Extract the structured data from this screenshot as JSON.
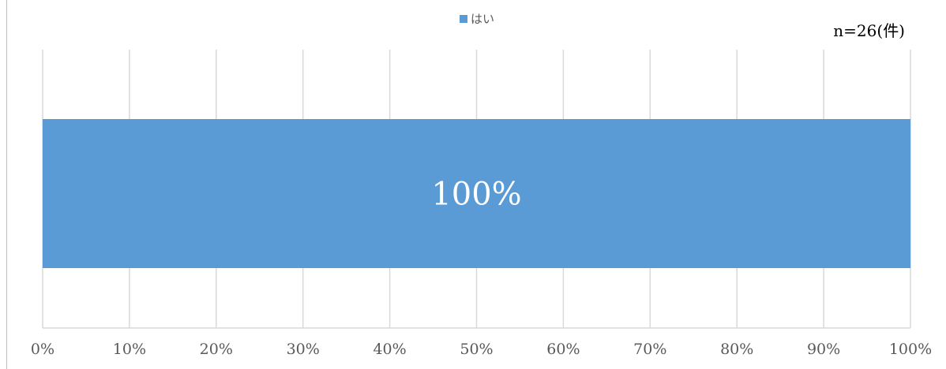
{
  "sample_note": "n=26(件)",
  "colors": {
    "bar": "#5b9bd5",
    "grid": "#d9d9d9",
    "tick_text": "#595959",
    "data_label": "#ffffff"
  },
  "chart_data": {
    "type": "bar",
    "orientation": "horizontal",
    "stacked": true,
    "categories": [
      ""
    ],
    "series": [
      {
        "name": "はい",
        "values": [
          100
        ]
      }
    ],
    "data_labels": [
      "100%"
    ],
    "xlim": [
      0,
      100
    ],
    "xticks": [
      0,
      10,
      20,
      30,
      40,
      50,
      60,
      70,
      80,
      90,
      100
    ],
    "xtick_labels": [
      "0%",
      "10%",
      "20%",
      "30%",
      "40%",
      "50%",
      "60%",
      "70%",
      "80%",
      "90%",
      "100%"
    ],
    "grid": "vertical",
    "legend_position": "top-center",
    "title": "",
    "xlabel": "",
    "ylabel": ""
  }
}
